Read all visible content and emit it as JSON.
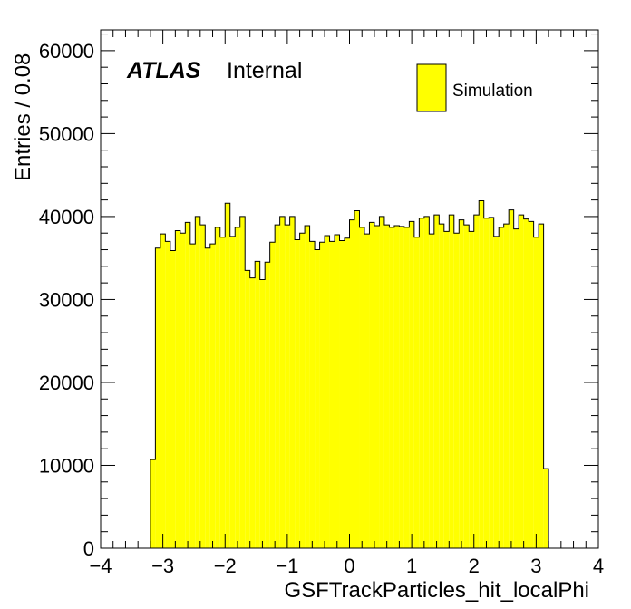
{
  "chart_data": {
    "type": "bar",
    "xlabel": "GSFTrackParticles_hit_localPhi",
    "ylabel": "Entries / 0.08",
    "xlim": [
      -4,
      4
    ],
    "ylim": [
      0,
      62500
    ],
    "bin_width": 0.08,
    "x_ticks": [
      -4,
      -3,
      -2,
      -1,
      0,
      1,
      2,
      3,
      4
    ],
    "x_tick_labels": [
      "−4",
      "−3",
      "−2",
      "−1",
      "0",
      "1",
      "2",
      "3",
      "4"
    ],
    "y_ticks": [
      0,
      10000,
      20000,
      30000,
      40000,
      50000,
      60000
    ],
    "y_tick_labels": [
      "0",
      "10000",
      "20000",
      "30000",
      "40000",
      "50000",
      "60000"
    ],
    "bin_low_edges": [
      -3.2,
      -3.12,
      -3.04,
      -2.96,
      -2.88,
      -2.8,
      -2.72,
      -2.64,
      -2.56,
      -2.48,
      -2.4,
      -2.32,
      -2.24,
      -2.16,
      -2.08,
      -2.0,
      -1.92,
      -1.84,
      -1.76,
      -1.68,
      -1.6,
      -1.52,
      -1.44,
      -1.36,
      -1.28,
      -1.2,
      -1.12,
      -1.04,
      -0.96,
      -0.88,
      -0.8,
      -0.72,
      -0.64,
      -0.56,
      -0.48,
      -0.4,
      -0.32,
      -0.24,
      -0.16,
      -0.08,
      0.0,
      0.08,
      0.16,
      0.24,
      0.32,
      0.4,
      0.48,
      0.56,
      0.64,
      0.72,
      0.8,
      0.88,
      0.96,
      1.04,
      1.12,
      1.2,
      1.28,
      1.36,
      1.44,
      1.52,
      1.6,
      1.68,
      1.76,
      1.84,
      1.92,
      2.0,
      2.08,
      2.16,
      2.24,
      2.32,
      2.4,
      2.48,
      2.56,
      2.64,
      2.72,
      2.8,
      2.88,
      2.96,
      3.04,
      3.12
    ],
    "series": [
      {
        "name": "Simulation",
        "color": "#ffff00",
        "values": [
          10700,
          36200,
          37900,
          37000,
          35900,
          38300,
          38000,
          39300,
          36700,
          40000,
          39000,
          36200,
          36700,
          38700,
          37500,
          41600,
          37600,
          38700,
          40000,
          33500,
          32600,
          34600,
          32400,
          34500,
          36900,
          39000,
          40000,
          39000,
          40000,
          37200,
          38000,
          38900,
          37000,
          36000,
          36900,
          37700,
          37000,
          37800,
          37100,
          37400,
          39600,
          40700,
          38700,
          37900,
          39300,
          38900,
          40000,
          39000,
          38700,
          38900,
          38800,
          38700,
          39400,
          37500,
          39800,
          40000,
          37900,
          40200,
          39100,
          38200,
          40200,
          38000,
          39600,
          39000,
          38200,
          40200,
          41900,
          39800,
          39900,
          37600,
          38700,
          39100,
          40800,
          38500,
          40200,
          39700,
          39400,
          37500,
          39100,
          9600
        ]
      }
    ]
  },
  "atlas": {
    "brand": "ATLAS",
    "status": "Internal"
  },
  "legend": {
    "label": "Simulation",
    "position": "top-right"
  }
}
